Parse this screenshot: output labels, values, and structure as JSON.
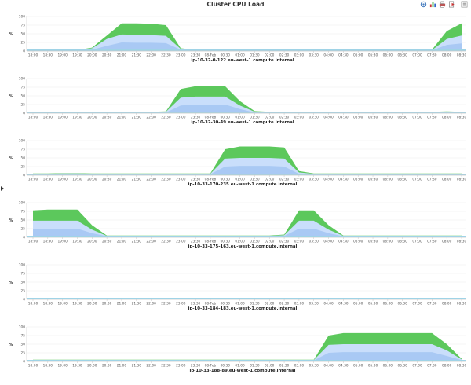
{
  "title": "Cluster CPU Load",
  "toolbar": {
    "icons": [
      "legend-icon",
      "bar-chart-icon",
      "print-icon",
      "export-icon",
      "menu-icon"
    ]
  },
  "colors": {
    "green": "#5cc85c",
    "blue_light": "#c9defb",
    "blue_mid": "#a9c9f4",
    "baseline": "#9fd3e6",
    "grid": "#ececec",
    "axis": "#c7c7c7"
  },
  "chart_data": [
    {
      "type": "area",
      "title": "ip-10-32-0-122.eu-west-1.compute.internal",
      "ylabel": "%",
      "ylim": [
        0,
        100
      ],
      "yticks": [
        "100",
        "75",
        "50",
        "25",
        "0"
      ],
      "x": [
        "18:00",
        "18:30",
        "19:00",
        "19:30",
        "20:00",
        "20:30",
        "21:00",
        "21:30",
        "22:00",
        "22:30",
        "23:00",
        "23:30",
        "08-Feb",
        "00:30",
        "01:00",
        "01:30",
        "02:00",
        "02:30",
        "03:00",
        "03:30",
        "04:00",
        "04:30",
        "05:00",
        "05:30",
        "06:00",
        "06:30",
        "07:00",
        "07:30",
        "08:00",
        "08:30"
      ],
      "series": [
        {
          "values": [
            3,
            3,
            3,
            3,
            10,
            45,
            80,
            80,
            79,
            75,
            8,
            4,
            4,
            4,
            6,
            4,
            3,
            3,
            3,
            3,
            3,
            3,
            3,
            3,
            3,
            3,
            3,
            4,
            58,
            80
          ]
        },
        {
          "values": [
            3,
            3,
            3,
            3,
            8,
            35,
            48,
            47,
            46,
            44,
            6,
            3,
            3,
            3,
            5,
            3,
            3,
            3,
            3,
            3,
            3,
            3,
            3,
            3,
            3,
            3,
            3,
            3,
            35,
            45
          ]
        },
        {
          "values": [
            2,
            2,
            2,
            2,
            4,
            15,
            25,
            24,
            24,
            23,
            4,
            2,
            2,
            2,
            3,
            2,
            2,
            2,
            2,
            2,
            2,
            2,
            2,
            2,
            2,
            2,
            2,
            2,
            18,
            22
          ]
        }
      ]
    },
    {
      "type": "area",
      "title": "ip-10-32-30-49.eu-west-1.compute.internal",
      "ylabel": "%",
      "ylim": [
        0,
        100
      ],
      "yticks": [
        "100",
        "75",
        "50",
        "25",
        "0"
      ],
      "x": [
        "18:00",
        "18:30",
        "19:00",
        "19:30",
        "20:00",
        "20:30",
        "21:00",
        "21:30",
        "22:00",
        "22:30",
        "23:00",
        "23:30",
        "08-Feb",
        "00:30",
        "01:00",
        "01:30",
        "02:00",
        "02:30",
        "03:00",
        "03:30",
        "04:00",
        "04:30",
        "05:00",
        "05:30",
        "06:00",
        "06:30",
        "07:00",
        "07:30",
        "08:00",
        "08:30"
      ],
      "series": [
        {
          "values": [
            4,
            4,
            4,
            4,
            4,
            4,
            4,
            4,
            4,
            5,
            70,
            78,
            78,
            78,
            35,
            6,
            4,
            4,
            4,
            4,
            4,
            4,
            4,
            4,
            4,
            4,
            4,
            4,
            5,
            4
          ]
        },
        {
          "values": [
            3,
            3,
            3,
            3,
            3,
            3,
            3,
            3,
            3,
            4,
            45,
            48,
            48,
            48,
            22,
            4,
            3,
            3,
            3,
            3,
            3,
            3,
            3,
            3,
            3,
            3,
            3,
            3,
            4,
            3
          ]
        },
        {
          "values": [
            2,
            2,
            2,
            2,
            2,
            2,
            2,
            2,
            2,
            2,
            22,
            25,
            25,
            25,
            12,
            2,
            2,
            2,
            2,
            2,
            2,
            2,
            2,
            2,
            2,
            2,
            2,
            2,
            2,
            2
          ]
        }
      ]
    },
    {
      "type": "area",
      "title": "ip-10-33-170-235.eu-west-1.compute.internal",
      "ylabel": "%",
      "ylim": [
        0,
        100
      ],
      "yticks": [
        "100",
        "75",
        "50",
        "25",
        "0"
      ],
      "x": [
        "18:00",
        "18:30",
        "19:00",
        "19:30",
        "20:00",
        "20:30",
        "21:00",
        "21:30",
        "22:00",
        "22:30",
        "23:00",
        "23:30",
        "08-Feb",
        "00:30",
        "01:00",
        "01:30",
        "02:00",
        "02:30",
        "03:00",
        "03:30",
        "04:00",
        "04:30",
        "05:00",
        "05:30",
        "06:00",
        "06:30",
        "07:00",
        "07:30",
        "08:00",
        "08:30"
      ],
      "series": [
        {
          "values": [
            5,
            5,
            6,
            6,
            5,
            5,
            5,
            5,
            5,
            5,
            5,
            5,
            5,
            75,
            83,
            83,
            83,
            80,
            12,
            5,
            5,
            5,
            5,
            5,
            5,
            5,
            5,
            5,
            5,
            5
          ]
        },
        {
          "values": [
            4,
            4,
            5,
            5,
            4,
            4,
            4,
            4,
            4,
            4,
            4,
            4,
            4,
            48,
            50,
            50,
            50,
            48,
            8,
            4,
            4,
            4,
            4,
            4,
            4,
            4,
            4,
            4,
            4,
            4
          ]
        },
        {
          "values": [
            3,
            3,
            3,
            3,
            3,
            3,
            3,
            3,
            3,
            3,
            3,
            3,
            3,
            25,
            27,
            27,
            27,
            25,
            4,
            3,
            3,
            3,
            3,
            3,
            3,
            3,
            3,
            3,
            3,
            3
          ]
        }
      ]
    },
    {
      "type": "area",
      "title": "ip-10-33-175-163.eu-west-1.compute.internal",
      "ylabel": "%",
      "ylim": [
        0,
        100
      ],
      "yticks": [
        "100",
        "75",
        "50",
        "25",
        "0"
      ],
      "x": [
        "18:00",
        "18:30",
        "19:00",
        "19:30",
        "20:00",
        "20:30",
        "21:00",
        "21:30",
        "22:00",
        "22:30",
        "23:00",
        "23:30",
        "08-Feb",
        "00:30",
        "01:00",
        "01:30",
        "02:00",
        "02:30",
        "03:00",
        "03:30",
        "04:00",
        "04:30",
        "05:00",
        "05:30",
        "06:00",
        "06:30",
        "07:00",
        "07:30",
        "08:00",
        "08:30"
      ],
      "series": [
        {
          "values": [
            78,
            80,
            80,
            80,
            35,
            5,
            5,
            5,
            5,
            5,
            5,
            5,
            5,
            5,
            5,
            5,
            5,
            8,
            78,
            78,
            35,
            5,
            5,
            5,
            5,
            5,
            5,
            5,
            5,
            5
          ]
        },
        {
          "values": [
            48,
            48,
            48,
            48,
            22,
            4,
            4,
            4,
            4,
            4,
            4,
            4,
            4,
            4,
            4,
            4,
            4,
            6,
            48,
            48,
            22,
            4,
            4,
            4,
            4,
            4,
            4,
            4,
            4,
            4
          ]
        },
        {
          "values": [
            25,
            25,
            25,
            25,
            12,
            3,
            3,
            3,
            3,
            3,
            3,
            3,
            3,
            3,
            3,
            3,
            3,
            4,
            25,
            25,
            12,
            3,
            3,
            3,
            3,
            3,
            3,
            3,
            3,
            3
          ]
        }
      ]
    },
    {
      "type": "area",
      "title": "ip-10-33-184-183.eu-west-1.compute.internal",
      "ylabel": "%",
      "ylim": [
        0,
        100
      ],
      "yticks": [
        "100",
        "75",
        "50",
        "25",
        "0"
      ],
      "x": [
        "18:00",
        "18:30",
        "19:00",
        "19:30",
        "20:00",
        "20:30",
        "21:00",
        "21:30",
        "22:00",
        "22:30",
        "23:00",
        "23:30",
        "08-Feb",
        "00:30",
        "01:00",
        "01:30",
        "02:00",
        "02:30",
        "03:00",
        "03:30",
        "04:00",
        "04:30",
        "05:00",
        "05:30",
        "06:00",
        "06:30",
        "07:00",
        "07:30",
        "08:00",
        "08:30"
      ],
      "series": []
    },
    {
      "type": "area",
      "title": "ip-10-33-188-89.eu-west-1.compute.internal",
      "ylabel": "%",
      "ylim": [
        0,
        100
      ],
      "yticks": [
        "100",
        "75",
        "50",
        "25",
        "0"
      ],
      "x": [
        "18:00",
        "18:30",
        "19:00",
        "19:30",
        "20:00",
        "20:30",
        "21:00",
        "21:30",
        "22:00",
        "22:30",
        "23:00",
        "23:30",
        "08-Feb",
        "00:30",
        "01:00",
        "01:30",
        "02:00",
        "02:30",
        "03:00",
        "03:30",
        "04:00",
        "04:30",
        "05:00",
        "05:30",
        "06:00",
        "06:30",
        "07:00",
        "07:30",
        "08:00",
        "08:30"
      ],
      "series": [
        {
          "values": [
            5,
            5,
            5,
            5,
            5,
            5,
            5,
            5,
            5,
            5,
            5,
            5,
            5,
            5,
            5,
            5,
            5,
            5,
            5,
            5,
            75,
            82,
            82,
            82,
            82,
            82,
            82,
            82,
            50,
            8
          ]
        },
        {
          "values": [
            4,
            4,
            4,
            4,
            4,
            4,
            4,
            4,
            4,
            4,
            4,
            4,
            4,
            4,
            4,
            4,
            4,
            4,
            4,
            4,
            48,
            50,
            50,
            50,
            50,
            50,
            50,
            50,
            32,
            6
          ]
        },
        {
          "values": [
            3,
            3,
            3,
            3,
            3,
            3,
            3,
            3,
            3,
            3,
            3,
            3,
            3,
            3,
            3,
            3,
            3,
            3,
            3,
            3,
            25,
            27,
            27,
            27,
            27,
            27,
            27,
            27,
            16,
            4
          ]
        }
      ]
    }
  ]
}
